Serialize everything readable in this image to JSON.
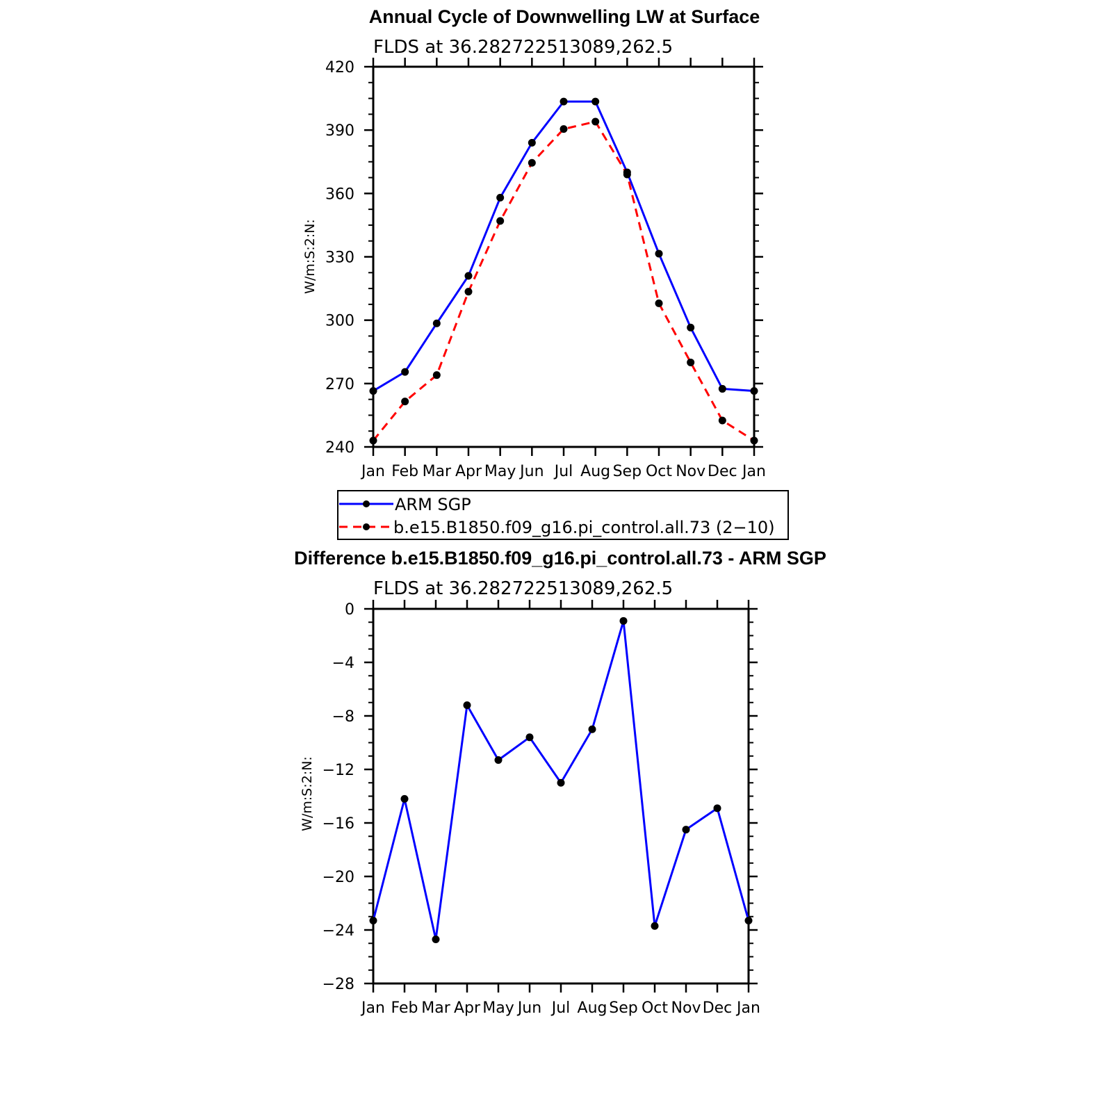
{
  "chart_data": [
    {
      "type": "line",
      "title": "Annual Cycle of Downwelling LW at Surface",
      "subtitle": "FLDS at 36.282722513089,262.5",
      "ylabel": "W/m:S:2:N:",
      "xlabel": "",
      "categories": [
        "Jan",
        "Feb",
        "Mar",
        "Apr",
        "May",
        "Jun",
        "Jul",
        "Aug",
        "Sep",
        "Oct",
        "Nov",
        "Dec",
        "Jan"
      ],
      "ylim": [
        240,
        420
      ],
      "yticks": [
        240,
        270,
        300,
        330,
        360,
        390,
        420
      ],
      "series": [
        {
          "name": "ARM SGP",
          "color": "#0000ff",
          "dash": "solid",
          "values": [
            266.5,
            275.5,
            298.5,
            321,
            358,
            384,
            403.5,
            403.5,
            370,
            331.5,
            296.5,
            267.5,
            266.5
          ]
        },
        {
          "name": "b.e15.B1850.f09_g16.pi_control.all.73 (2−10)",
          "color": "#ff0000",
          "dash": "dashed",
          "values": [
            243,
            261.5,
            274,
            313.5,
            347,
            374.5,
            390.5,
            394,
            369,
            308,
            280,
            252.5,
            243
          ]
        }
      ],
      "legend": {
        "position": "below"
      }
    },
    {
      "type": "line",
      "title": "Difference b.e15.B1850.f09_g16.pi_control.all.73 - ARM SGP",
      "subtitle": "FLDS at 36.282722513089,262.5",
      "ylabel": "W/m:S:2:N:",
      "xlabel": "",
      "categories": [
        "Jan",
        "Feb",
        "Mar",
        "Apr",
        "May",
        "Jun",
        "Jul",
        "Aug",
        "Sep",
        "Oct",
        "Nov",
        "Dec",
        "Jan"
      ],
      "ylim": [
        -28,
        0
      ],
      "yticks": [
        -28,
        -24,
        -20,
        -16,
        -12,
        -8,
        -4,
        0
      ],
      "series": [
        {
          "name": "Difference",
          "color": "#0000ff",
          "dash": "solid",
          "values": [
            -23.3,
            -14.2,
            -24.7,
            -7.2,
            -11.3,
            -9.6,
            -13,
            -9,
            -0.9,
            -23.7,
            -16.5,
            -14.9,
            -23.3
          ]
        }
      ]
    }
  ]
}
